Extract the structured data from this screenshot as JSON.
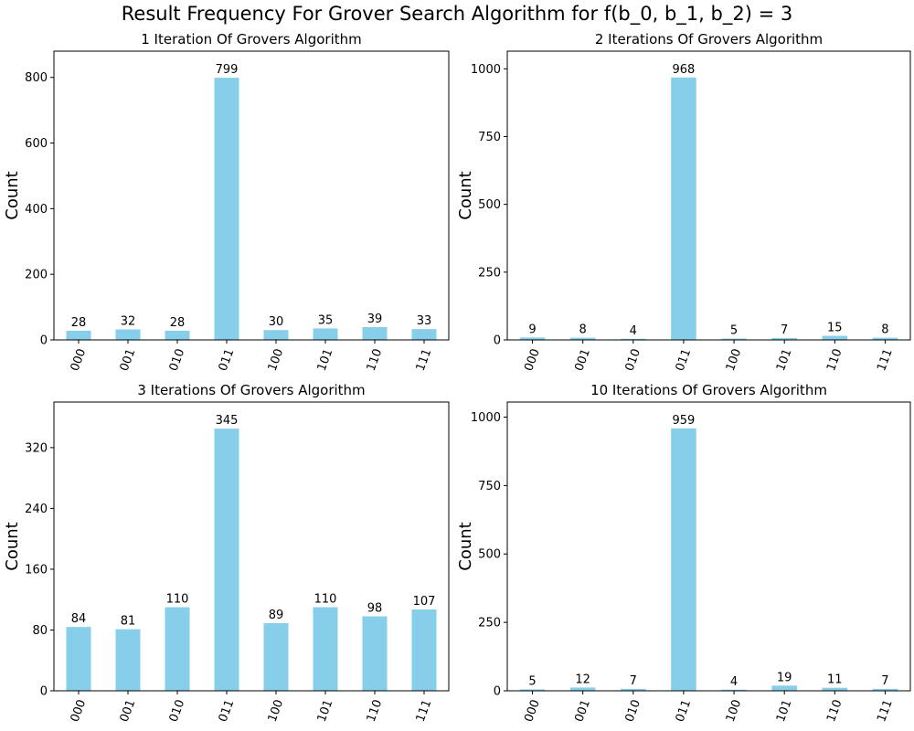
{
  "suptitle": "Result Frequency For Grover Search Algorithm for f(b_0, b_1, b_2) = 3",
  "colors": {
    "bar": "#87ceeb",
    "axis": "#000000",
    "text": "#000000"
  },
  "chart_data": [
    {
      "type": "bar",
      "title": "1 Iteration Of Grovers Algorithm",
      "xlabel": "",
      "ylabel": "Count",
      "categories": [
        "000",
        "001",
        "010",
        "011",
        "100",
        "101",
        "110",
        "111"
      ],
      "values": [
        28,
        32,
        28,
        799,
        30,
        35,
        39,
        33
      ],
      "ylim": [
        0,
        880
      ],
      "yticks": [
        0,
        200,
        400,
        600,
        800
      ],
      "grid": false,
      "data_labels": true
    },
    {
      "type": "bar",
      "title": "2 Iterations Of Grovers Algorithm",
      "xlabel": "",
      "ylabel": "Count",
      "categories": [
        "000",
        "001",
        "010",
        "011",
        "100",
        "101",
        "110",
        "111"
      ],
      "values": [
        9,
        8,
        4,
        968,
        5,
        7,
        15,
        8
      ],
      "ylim": [
        0,
        1065
      ],
      "yticks": [
        0,
        250,
        500,
        750,
        1000
      ],
      "grid": false,
      "data_labels": true
    },
    {
      "type": "bar",
      "title": "3 Iterations Of Grovers Algorithm",
      "xlabel": "",
      "ylabel": "Count",
      "categories": [
        "000",
        "001",
        "010",
        "011",
        "100",
        "101",
        "110",
        "111"
      ],
      "values": [
        84,
        81,
        110,
        345,
        89,
        110,
        98,
        107
      ],
      "ylim": [
        0,
        380
      ],
      "yticks": [
        0,
        80,
        160,
        240,
        320
      ],
      "grid": false,
      "data_labels": true
    },
    {
      "type": "bar",
      "title": "10 Iterations Of Grovers Algorithm",
      "xlabel": "",
      "ylabel": "Count",
      "categories": [
        "000",
        "001",
        "010",
        "011",
        "100",
        "101",
        "110",
        "111"
      ],
      "values": [
        5,
        12,
        7,
        959,
        4,
        19,
        11,
        7
      ],
      "ylim": [
        0,
        1055
      ],
      "yticks": [
        0,
        250,
        500,
        750,
        1000
      ],
      "grid": false,
      "data_labels": true
    }
  ]
}
